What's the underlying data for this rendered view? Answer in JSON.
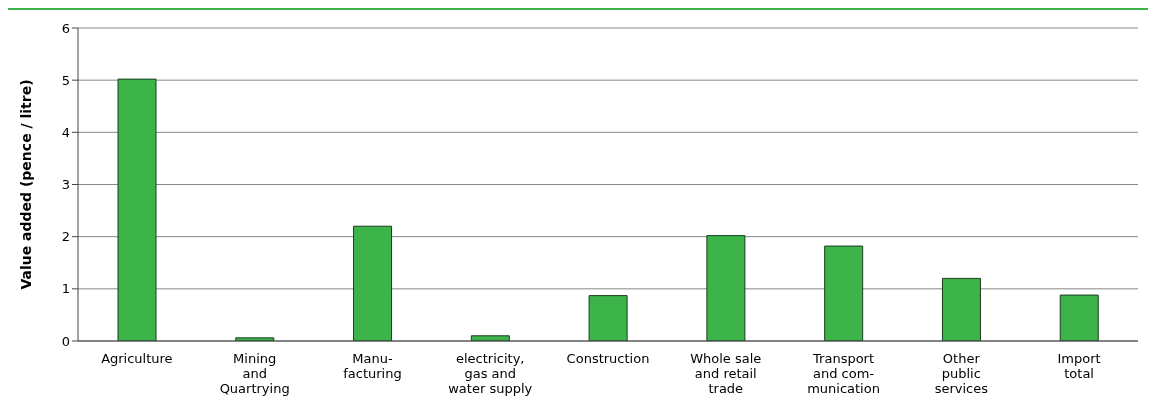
{
  "chart_data": {
    "type": "bar",
    "ylabel": "Value added (pence / litre)",
    "categories": [
      "Agriculture",
      "Mining\nand\nQuartrying",
      "Manu-\nfacturing",
      "electricity,\ngas and\nwater supply",
      "Construction",
      "Whole sale\nand retail\ntrade",
      "Transport\nand com-\nmunication",
      "Other\npublic\nservices",
      "Import\ntotal"
    ],
    "values": [
      5.02,
      0.06,
      2.2,
      0.1,
      0.87,
      2.02,
      1.82,
      1.2,
      0.88
    ],
    "color": "#3cb44a",
    "ylim": [
      0,
      6
    ],
    "yticks": [
      0,
      1,
      2,
      3,
      4,
      5,
      6
    ],
    "grid": "y"
  }
}
